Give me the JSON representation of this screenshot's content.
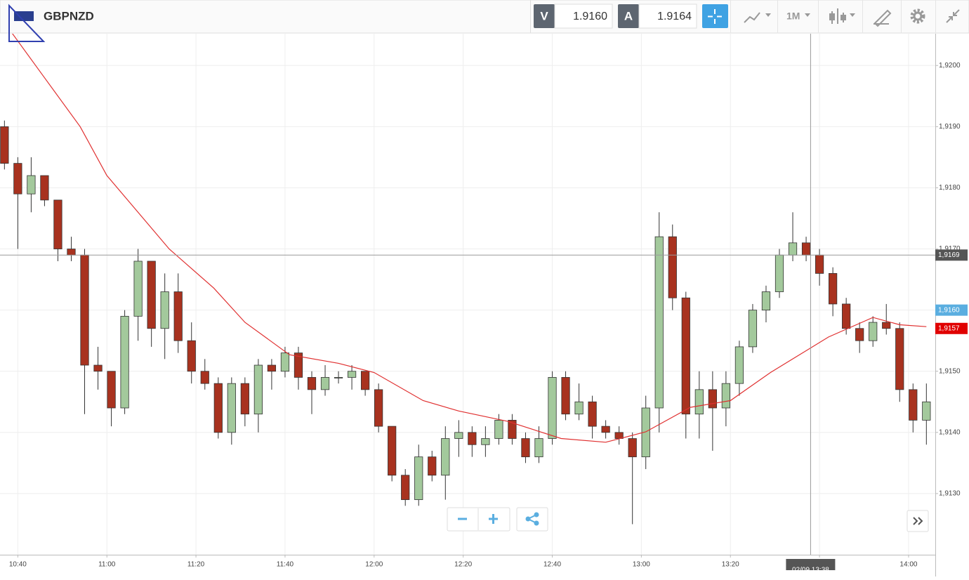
{
  "header": {
    "symbol": "GBPNZD",
    "sell_label": "V",
    "sell_price": "1.9160",
    "buy_label": "A",
    "buy_price": "1.9164",
    "timeframe": "1M"
  },
  "chart_data": {
    "type": "candlestick",
    "x": [
      "10:37",
      "10:40",
      "10:43",
      "10:46",
      "10:49",
      "10:52",
      "10:55",
      "10:58",
      "11:01",
      "11:04",
      "11:07",
      "11:10",
      "11:13",
      "11:16",
      "11:19",
      "11:22",
      "11:25",
      "11:28",
      "11:31",
      "11:34",
      "11:37",
      "11:40",
      "11:43",
      "11:46",
      "11:49",
      "11:52",
      "11:55",
      "11:58",
      "12:01",
      "12:04",
      "12:07",
      "12:10",
      "12:13",
      "12:16",
      "12:19",
      "12:22",
      "12:25",
      "12:28",
      "12:31",
      "12:34",
      "12:37",
      "12:40",
      "12:43",
      "12:46",
      "12:49",
      "12:52",
      "12:55",
      "12:58",
      "13:01",
      "13:04",
      "13:07",
      "13:10",
      "13:13",
      "13:16",
      "13:19",
      "13:22",
      "13:25",
      "13:28",
      "13:31",
      "13:34",
      "13:37",
      "13:40",
      "13:43",
      "13:46",
      "13:49",
      "13:52",
      "13:55",
      "13:58",
      "14:01",
      "14:04"
    ],
    "open": [
      1.919,
      1.9184,
      1.9179,
      1.9182,
      1.9178,
      1.917,
      1.9169,
      1.9151,
      1.915,
      1.9144,
      1.9159,
      1.9168,
      1.9157,
      1.9163,
      1.9155,
      1.915,
      1.9148,
      1.914,
      1.9148,
      1.9143,
      1.9151,
      1.915,
      1.9153,
      1.9149,
      1.9147,
      1.9149,
      1.9149,
      1.915,
      1.9147,
      1.9141,
      1.9133,
      1.9129,
      1.9136,
      1.9133,
      1.9139,
      1.914,
      1.9138,
      1.9139,
      1.9142,
      1.9139,
      1.9136,
      1.9139,
      1.9149,
      1.9143,
      1.9145,
      1.9141,
      1.914,
      1.9139,
      1.9136,
      1.9144,
      1.9172,
      1.9162,
      1.9143,
      1.9147,
      1.9144,
      1.9148,
      1.9154,
      1.916,
      1.9163,
      1.9169,
      1.9171,
      1.9169,
      1.9166,
      1.9161,
      1.9157,
      1.9155,
      1.9158,
      1.9157,
      1.9147,
      1.9142
    ],
    "high": [
      1.9191,
      1.9185,
      1.9185,
      1.9182,
      1.9178,
      1.9172,
      1.917,
      1.9154,
      1.915,
      1.916,
      1.917,
      1.9168,
      1.9166,
      1.9166,
      1.9158,
      1.9152,
      1.9149,
      1.9149,
      1.9149,
      1.9152,
      1.9152,
      1.9154,
      1.9154,
      1.915,
      1.9151,
      1.915,
      1.9151,
      1.915,
      1.9148,
      1.9141,
      1.9134,
      1.9138,
      1.9137,
      1.9141,
      1.9142,
      1.9141,
      1.9141,
      1.9143,
      1.9143,
      1.914,
      1.9141,
      1.915,
      1.915,
      1.9148,
      1.9146,
      1.9142,
      1.9141,
      1.914,
      1.9146,
      1.9176,
      1.9174,
      1.9163,
      1.915,
      1.915,
      1.915,
      1.9155,
      1.9161,
      1.9164,
      1.917,
      1.9176,
      1.9172,
      1.917,
      1.9167,
      1.9162,
      1.9158,
      1.9159,
      1.9161,
      1.9158,
      1.9148,
      1.9148
    ],
    "low": [
      1.9183,
      1.917,
      1.9176,
      1.9177,
      1.9168,
      1.9168,
      1.9143,
      1.9147,
      1.9141,
      1.9143,
      1.9155,
      1.9154,
      1.9152,
      1.9153,
      1.9148,
      1.9147,
      1.9139,
      1.9138,
      1.9141,
      1.914,
      1.9147,
      1.9149,
      1.9147,
      1.9143,
      1.9146,
      1.9148,
      1.9147,
      1.9146,
      1.914,
      1.9132,
      1.9128,
      1.9128,
      1.9132,
      1.9129,
      1.9136,
      1.9136,
      1.9136,
      1.9138,
      1.9138,
      1.9135,
      1.9135,
      1.9138,
      1.9142,
      1.9142,
      1.9139,
      1.9139,
      1.9138,
      1.9125,
      1.9134,
      1.914,
      1.916,
      1.9139,
      1.9139,
      1.9137,
      1.9141,
      1.9146,
      1.9153,
      1.9158,
      1.9162,
      1.9168,
      1.9168,
      1.9164,
      1.9159,
      1.9156,
      1.9153,
      1.9154,
      1.9156,
      1.9145,
      1.914,
      1.9138
    ],
    "close": [
      1.9184,
      1.9179,
      1.9182,
      1.9178,
      1.917,
      1.9169,
      1.9151,
      1.915,
      1.9144,
      1.9159,
      1.9168,
      1.9157,
      1.9163,
      1.9155,
      1.915,
      1.9148,
      1.914,
      1.9148,
      1.9143,
      1.9151,
      1.915,
      1.9153,
      1.9149,
      1.9147,
      1.9149,
      1.9149,
      1.915,
      1.9147,
      1.9141,
      1.9133,
      1.9129,
      1.9136,
      1.9133,
      1.9139,
      1.914,
      1.9138,
      1.9139,
      1.9142,
      1.9139,
      1.9136,
      1.9139,
      1.9149,
      1.9143,
      1.9145,
      1.9141,
      1.914,
      1.9139,
      1.9136,
      1.9144,
      1.9172,
      1.9162,
      1.9143,
      1.9147,
      1.9144,
      1.9148,
      1.9154,
      1.916,
      1.9163,
      1.9169,
      1.9171,
      1.9169,
      1.9166,
      1.9161,
      1.9157,
      1.9155,
      1.9158,
      1.9157,
      1.9147,
      1.9142,
      1.9145
    ],
    "up_color": "#a3c99c",
    "down_color": "#a8321f",
    "moving_average": {
      "color": "#e03030",
      "x": [
        "10:38",
        "10:46",
        "10:54",
        "11:00",
        "11:14",
        "11:24",
        "11:31",
        "11:41",
        "11:52",
        "12:00",
        "12:11",
        "12:19",
        "12:30",
        "12:42",
        "12:52",
        "13:01",
        "13:11",
        "13:20",
        "13:29",
        "13:42",
        "13:52",
        "13:58",
        "14:04"
      ],
      "values": [
        1.9206,
        1.9198,
        1.919,
        1.9182,
        1.917,
        1.91636,
        1.9158,
        1.91527,
        1.91513,
        1.91498,
        1.91452,
        1.91435,
        1.91418,
        1.9139,
        1.91384,
        1.91401,
        1.91441,
        1.91452,
        1.91498,
        1.91556,
        1.91588,
        1.91576,
        1.91573
      ]
    },
    "xlim": [
      "10:36",
      "14:06"
    ],
    "xticks": [
      "10:40",
      "11:00",
      "11:20",
      "11:40",
      "12:00",
      "12:20",
      "12:40",
      "13:00",
      "13:20",
      "13:40",
      "14:00"
    ],
    "ylim": [
      1.912,
      1.92052
    ],
    "yticks": [
      {
        "value": 1.913,
        "label": "1,9130"
      },
      {
        "value": 1.914,
        "label": "1,9140"
      },
      {
        "value": 1.915,
        "label": "1,9150"
      },
      {
        "value": 1.916,
        "label": "1,9160"
      },
      {
        "value": 1.917,
        "label": "1,9170"
      },
      {
        "value": 1.918,
        "label": "1,9180"
      },
      {
        "value": 1.919,
        "label": "1,9190"
      },
      {
        "value": 1.92,
        "label": "1,9200"
      }
    ],
    "grid": true,
    "crosshair": {
      "y": {
        "value": 1.9169,
        "label": "1,9169"
      },
      "x": {
        "value": "13:38",
        "label": "02/09 13:38"
      }
    },
    "price_markers": [
      {
        "value": 1.916,
        "label": "1,9160",
        "color": "#5aaee0"
      },
      {
        "value": 1.9157,
        "label": "1,9157",
        "color": "#e00000"
      }
    ]
  }
}
